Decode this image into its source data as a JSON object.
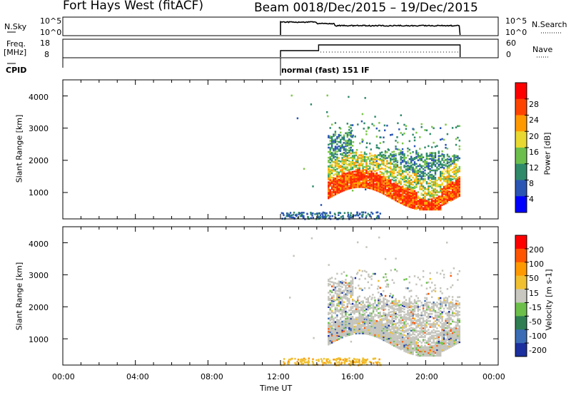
{
  "header": {
    "radar": "Fort Hays West (fitACF)",
    "beam": "Beam 00",
    "dates": "18/Dec/2015 – 19/Dec/2015"
  },
  "top_panels": {
    "nsky_label": "N.Sky",
    "nsky_ticks": [
      "10^5",
      "10^0"
    ],
    "nsearch_ticks": [
      "10^5",
      "10^0"
    ],
    "nsearch_label": "N.Search",
    "freq_label_line1": "Freq.",
    "freq_label_line2": "[MHz]",
    "freq_ticks": [
      "18",
      "8"
    ],
    "nave_ticks": [
      "60",
      "0"
    ],
    "nave_label": "Nave",
    "cpid_label": "CPID",
    "cpid_text": "normal (fast) 151 IF"
  },
  "chart_data": [
    {
      "type": "heatmap",
      "name": "power",
      "ylabel": "Slant Range [km]",
      "ylim": [
        180,
        4500
      ],
      "yticks": [
        "4000",
        "3000",
        "2000",
        "1000"
      ],
      "x": [
        "00:00",
        "04:00",
        "08:00",
        "12:00",
        "16:00",
        "20:00",
        "00:00"
      ],
      "xlim_hours": [
        0,
        24
      ],
      "data_extent_hours": [
        12,
        21.9
      ],
      "colorbar_label": "Power [dB]",
      "colorbar_ticks": [
        "28",
        "24",
        "20",
        "16",
        "12",
        "8",
        "4"
      ],
      "colorbar_range": [
        0,
        30
      ],
      "colorbar_colors": [
        "#0000ff",
        "#2b55b5",
        "#2f8a6a",
        "#6cbf4c",
        "#e8d830",
        "#ff9900",
        "#ff4400",
        "#ff0000"
      ],
      "echo_bands": [
        {
          "t0": 14.6,
          "t1": 21.9,
          "r0": 700,
          "r1": 2600,
          "level": "mid"
        },
        {
          "t0": 14.6,
          "t1": 21.9,
          "r0": 850,
          "r1": 1900,
          "level": "high"
        },
        {
          "t0": 15.5,
          "t1": 18.5,
          "r0": 1700,
          "r1": 3100,
          "level": "low"
        }
      ]
    },
    {
      "type": "heatmap",
      "name": "velocity",
      "ylabel": "Slant Range [km]",
      "ylim": [
        180,
        4500
      ],
      "yticks": [
        "4000",
        "3000",
        "2000",
        "1000"
      ],
      "x": [
        "00:00",
        "04:00",
        "08:00",
        "12:00",
        "16:00",
        "20:00",
        "00:00"
      ],
      "xlabel": "Time UT",
      "colorbar_label": "Velocity [m s-1]",
      "colorbar_ticks": [
        "200",
        "100",
        "50",
        "15",
        "-15",
        "-50",
        "-100",
        "-200"
      ],
      "colorbar_colors": [
        "#1b2f9e",
        "#3a6db5",
        "#2e7e52",
        "#6cc04a",
        "#c8c8c0",
        "#f0c030",
        "#ff9900",
        "#ff5500",
        "#ff0000"
      ]
    }
  ]
}
